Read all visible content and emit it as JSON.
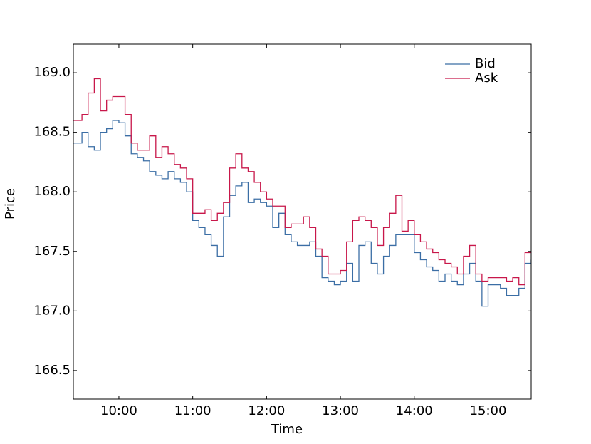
{
  "chart_data": {
    "type": "line",
    "drawstyle": "steps-post",
    "x_label": "Time",
    "y_label": "Price",
    "x": [
      563,
      570,
      575,
      580,
      585,
      590,
      595,
      600,
      605,
      610,
      615,
      620,
      625,
      630,
      635,
      640,
      645,
      650,
      655,
      660,
      665,
      670,
      675,
      680,
      685,
      690,
      695,
      700,
      705,
      710,
      715,
      720,
      725,
      730,
      735,
      740,
      745,
      750,
      755,
      760,
      765,
      770,
      775,
      780,
      785,
      790,
      795,
      800,
      805,
      810,
      815,
      820,
      825,
      830,
      835,
      840,
      845,
      850,
      855,
      860,
      865,
      870,
      875,
      880,
      885,
      890,
      895,
      900,
      905,
      910,
      915,
      920,
      925,
      930,
      935
    ],
    "series": [
      {
        "name": "Bid",
        "color": "#3b6ea5",
        "values": [
          168.41,
          168.5,
          168.38,
          168.35,
          168.5,
          168.53,
          168.6,
          168.58,
          168.47,
          168.32,
          168.29,
          168.26,
          168.17,
          168.14,
          168.11,
          168.17,
          168.11,
          168.08,
          168.0,
          167.76,
          167.7,
          167.64,
          167.55,
          167.46,
          167.79,
          167.97,
          168.05,
          168.08,
          167.91,
          167.94,
          167.91,
          167.88,
          167.7,
          167.82,
          167.64,
          167.58,
          167.55,
          167.55,
          167.58,
          167.46,
          167.28,
          167.25,
          167.22,
          167.25,
          167.4,
          167.25,
          167.55,
          167.58,
          167.4,
          167.31,
          167.46,
          167.55,
          167.64,
          167.64,
          167.64,
          167.49,
          167.43,
          167.37,
          167.34,
          167.25,
          167.31,
          167.25,
          167.22,
          167.31,
          167.4,
          167.25,
          167.04,
          167.22,
          167.22,
          167.19,
          167.13,
          167.13,
          167.19,
          167.4,
          167.43
        ]
      },
      {
        "name": "Ask",
        "color": "#c8174a",
        "values": [
          168.6,
          168.65,
          168.83,
          168.95,
          168.68,
          168.77,
          168.8,
          168.8,
          168.65,
          168.41,
          168.35,
          168.35,
          168.47,
          168.29,
          168.38,
          168.32,
          168.23,
          168.2,
          168.11,
          167.82,
          167.82,
          167.85,
          167.76,
          167.82,
          167.91,
          168.2,
          168.32,
          168.2,
          168.17,
          168.08,
          168.0,
          167.94,
          167.88,
          167.88,
          167.7,
          167.73,
          167.73,
          167.79,
          167.7,
          167.52,
          167.46,
          167.31,
          167.31,
          167.34,
          167.58,
          167.76,
          167.79,
          167.76,
          167.7,
          167.55,
          167.7,
          167.82,
          167.97,
          167.67,
          167.76,
          167.64,
          167.58,
          167.52,
          167.49,
          167.43,
          167.4,
          167.37,
          167.31,
          167.46,
          167.55,
          167.31,
          167.25,
          167.28,
          167.28,
          167.28,
          167.25,
          167.28,
          167.22,
          167.49,
          167.49
        ]
      }
    ],
    "xlim": [
      563,
      935
    ],
    "xticks": [
      {
        "value": 600,
        "label": "10:00"
      },
      {
        "value": 660,
        "label": "11:00"
      },
      {
        "value": 720,
        "label": "12:00"
      },
      {
        "value": 780,
        "label": "13:00"
      },
      {
        "value": 840,
        "label": "14:00"
      },
      {
        "value": 900,
        "label": "15:00"
      }
    ],
    "ylim": [
      166.26,
      169.24
    ],
    "yticks": [
      166.5,
      {
        "value": 167,
        "label": "167.0"
      },
      167.5,
      {
        "value": 168,
        "label": "168.0"
      },
      168.5,
      {
        "value": 169,
        "label": "169.0"
      }
    ],
    "legend": "upper right"
  }
}
